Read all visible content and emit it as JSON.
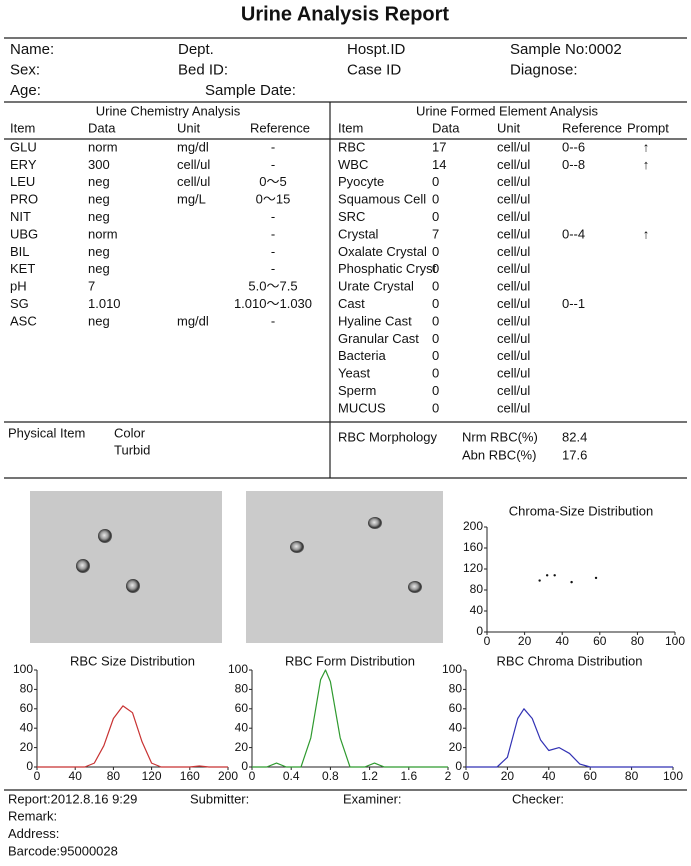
{
  "header": {
    "title": "Urine Analysis Report",
    "rows": [
      [
        "Name:",
        "Dept.",
        "Hospt.ID",
        "Sample No:0002"
      ],
      [
        "Sex:",
        "Bed ID:",
        "Case ID",
        "Diagnose:"
      ],
      [
        "Age:",
        "Sample Date:"
      ]
    ]
  },
  "chemistry": {
    "title": "Urine Chemistry Analysis",
    "columns": [
      "Item",
      "Data",
      "Unit",
      "Reference"
    ],
    "rows": [
      [
        "GLU",
        "norm",
        "mg/dl",
        "-"
      ],
      [
        "ERY",
        "300",
        "cell/ul",
        "-"
      ],
      [
        "LEU",
        "neg",
        "cell/ul",
        "0～5"
      ],
      [
        "PRO",
        "neg",
        "mg/L",
        "0～15"
      ],
      [
        "NIT",
        "neg",
        null,
        "-"
      ],
      [
        "UBG",
        "norm",
        null,
        "-"
      ],
      [
        "BIL",
        "neg",
        null,
        "-"
      ],
      [
        "KET",
        "neg",
        null,
        "-"
      ],
      [
        "pH",
        "7",
        null,
        "5.0～7.5"
      ],
      [
        "SG",
        "1.010",
        null,
        "1.010～1.030"
      ],
      [
        "ASC",
        "neg",
        "mg/dl",
        "-"
      ]
    ]
  },
  "formed": {
    "title": "Urine Formed Element Analysis",
    "columns": [
      "Item",
      "Data",
      "Unit",
      "Reference",
      "Prompt"
    ],
    "rows": [
      [
        "RBC",
        "17",
        "cell/ul",
        "0--6",
        "↑"
      ],
      [
        "WBC",
        "14",
        "cell/ul",
        "0--8",
        "↑"
      ],
      [
        "Pyocyte",
        "0",
        "cell/ul",
        null,
        null
      ],
      [
        "Squamous Cell",
        "0",
        "cell/ul",
        null,
        null
      ],
      [
        "SRC",
        "0",
        "cell/ul",
        null,
        null
      ],
      [
        "Crystal",
        "7",
        "cell/ul",
        "0--4",
        "↑"
      ],
      [
        "Oxalate Crystal",
        "0",
        "cell/ul",
        null,
        null
      ],
      [
        "Phosphatic Cryst",
        "0",
        "cell/ul",
        null,
        null
      ],
      [
        "Urate Crystal",
        "0",
        "cell/ul",
        null,
        null
      ],
      [
        "Cast",
        "0",
        "cell/ul",
        "0--1",
        null
      ],
      [
        "Hyaline Cast",
        "0",
        "cell/ul",
        null,
        null
      ],
      [
        "Granular Cast",
        "0",
        "cell/ul",
        null,
        null
      ],
      [
        "Bacteria",
        "0",
        "cell/ul",
        null,
        null
      ],
      [
        "Yeast",
        "0",
        "cell/ul",
        null,
        null
      ],
      [
        "Sperm",
        "0",
        "cell/ul",
        null,
        null
      ],
      [
        "MUCUS",
        "0",
        "cell/ul",
        null,
        null
      ]
    ]
  },
  "physical": {
    "label": "Physical Item",
    "items": [
      "Color",
      "Turbid"
    ]
  },
  "morphology": {
    "label": "RBC Morphology",
    "rows": [
      [
        "Nrm RBC(%)",
        "82.4"
      ],
      [
        "Abn RBC(%)",
        "17.6"
      ]
    ]
  },
  "chart_data": [
    {
      "type": "scatter",
      "title": "Chroma-Size Distribution",
      "color": "#111111",
      "x": [
        28,
        32,
        36,
        45,
        58
      ],
      "values": [
        98,
        108,
        108,
        95,
        103
      ],
      "xlim": [
        0,
        100
      ],
      "xticks": [
        0,
        20,
        40,
        60,
        80,
        100
      ],
      "ylim": [
        0,
        200
      ],
      "yticks": [
        0,
        40,
        80,
        120,
        160,
        200
      ]
    },
    {
      "type": "line",
      "title": "RBC Size Distribution",
      "color": "#c83232",
      "x": [
        0,
        50,
        60,
        70,
        80,
        90,
        100,
        110,
        120,
        130,
        160,
        170,
        180,
        200
      ],
      "values": [
        0,
        0,
        4,
        22,
        50,
        63,
        56,
        26,
        4,
        0,
        0,
        1,
        0,
        0
      ],
      "xlim": [
        0,
        200
      ],
      "xticks": [
        0,
        40,
        80,
        120,
        160,
        200
      ],
      "ylim": [
        0,
        100
      ],
      "yticks": [
        0,
        20,
        40,
        60,
        80,
        100
      ]
    },
    {
      "type": "line",
      "title": "RBC Form Distribution",
      "color": "#2f9a2f",
      "x": [
        0,
        0.15,
        0.25,
        0.35,
        0.5,
        0.6,
        0.7,
        0.75,
        0.8,
        0.9,
        1.0,
        1.15,
        1.25,
        1.35,
        2
      ],
      "values": [
        0,
        0,
        4,
        0,
        0,
        30,
        90,
        100,
        88,
        30,
        0,
        0,
        4,
        0,
        0
      ],
      "xlim": [
        0,
        2
      ],
      "xticks": [
        0,
        0.4,
        0.8,
        1.2,
        1.6,
        2
      ],
      "ylim": [
        0,
        100
      ],
      "yticks": [
        0,
        20,
        40,
        60,
        80,
        100
      ]
    },
    {
      "type": "line",
      "title": "RBC Chroma Distribution",
      "color": "#3232b4",
      "x": [
        0,
        15,
        20,
        25,
        28,
        32,
        36,
        40,
        45,
        50,
        55,
        60,
        100
      ],
      "values": [
        0,
        0,
        10,
        50,
        60,
        50,
        28,
        17,
        20,
        14,
        3,
        0,
        0
      ],
      "xlim": [
        0,
        100
      ],
      "xticks": [
        0,
        20,
        40,
        60,
        80,
        100
      ],
      "ylim": [
        0,
        100
      ],
      "yticks": [
        0,
        20,
        40,
        60,
        80,
        100
      ]
    }
  ],
  "footer": {
    "row": [
      "Report:2012.8.16 9:29",
      "Submitter:",
      "Examiner:",
      "Checker:"
    ],
    "lines": [
      "Remark:",
      "Address:",
      "Barcode:95000028"
    ]
  }
}
